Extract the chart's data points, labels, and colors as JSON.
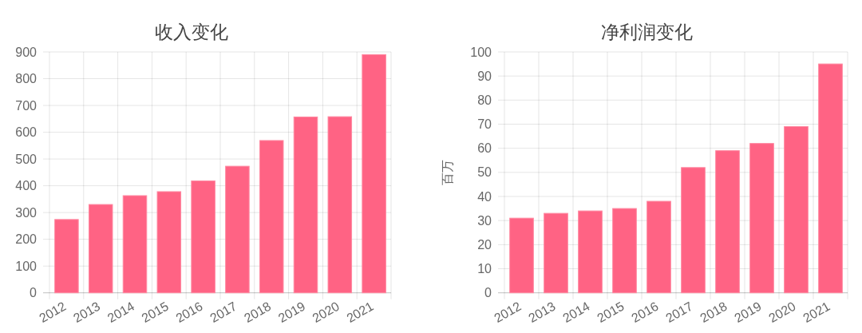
{
  "chart_data": [
    {
      "type": "bar",
      "title": "收入变化",
      "categories": [
        "2012",
        "2013",
        "2014",
        "2015",
        "2016",
        "2017",
        "2018",
        "2019",
        "2020",
        "2021"
      ],
      "values": [
        274,
        330,
        363,
        378,
        418,
        473,
        569,
        657,
        658,
        890
      ],
      "color": "#ff6384",
      "ylim": [
        0,
        900
      ],
      "yticks": [
        0,
        100,
        200,
        300,
        400,
        500,
        600,
        700,
        800,
        900
      ],
      "grid": true
    },
    {
      "type": "bar",
      "title": "净利润变化",
      "ylabel": "百万",
      "categories": [
        "2012",
        "2013",
        "2014",
        "2015",
        "2016",
        "2017",
        "2018",
        "2019",
        "2020",
        "2021"
      ],
      "values": [
        31,
        33,
        34,
        35,
        38,
        52,
        59,
        62,
        69,
        95
      ],
      "color": "#ff6384",
      "ylim": [
        0,
        100
      ],
      "yticks": [
        0,
        10,
        20,
        30,
        40,
        50,
        60,
        70,
        80,
        90,
        100
      ],
      "grid": true
    }
  ]
}
